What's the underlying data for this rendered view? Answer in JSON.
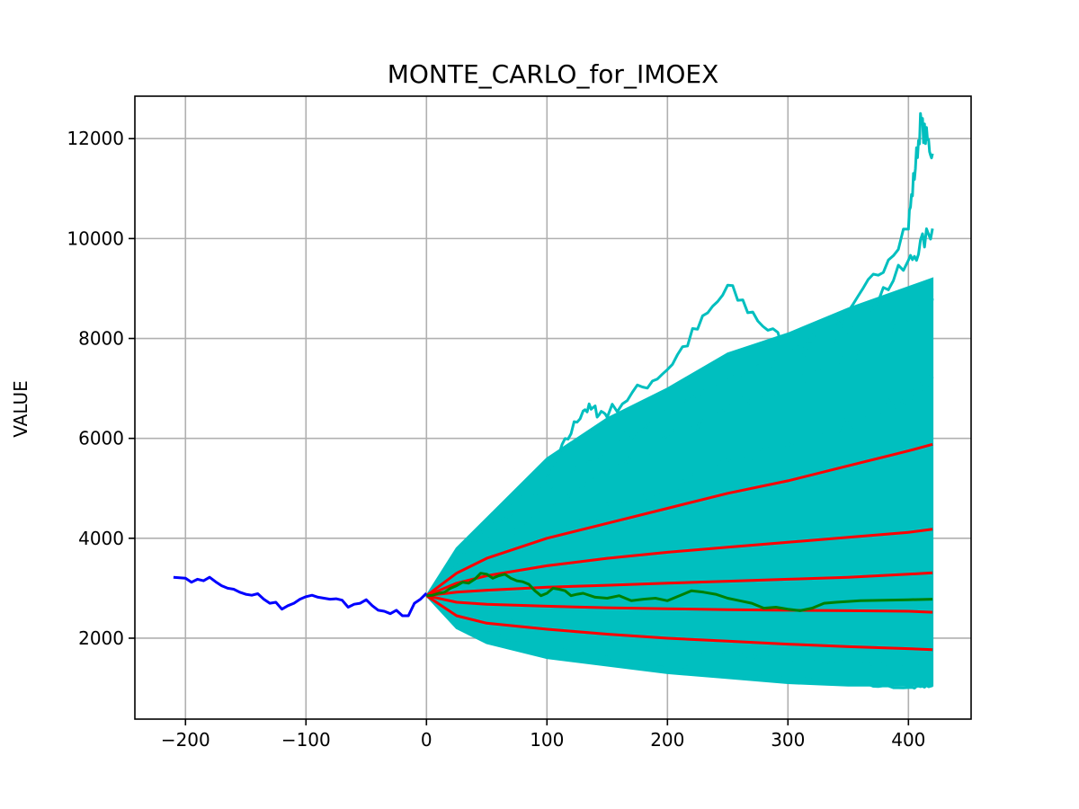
{
  "chart_data": {
    "type": "line",
    "title": "MONTE_CARLO_for_IMOEX",
    "xlabel": "",
    "ylabel": "VALUE",
    "xlim": [
      -242,
      452
    ],
    "ylim": [
      380,
      12850
    ],
    "x_ticks": [
      -200,
      -100,
      0,
      100,
      200,
      300,
      400
    ],
    "x_tick_labels": [
      "−200",
      "−100",
      "0",
      "100",
      "200",
      "300",
      "400"
    ],
    "y_ticks": [
      2000,
      4000,
      6000,
      8000,
      10000,
      12000
    ],
    "y_tick_labels": [
      "2000",
      "4000",
      "6000",
      "8000",
      "10000",
      "12000"
    ],
    "grid": true,
    "colors": {
      "history": "#0000ff",
      "simulations": "#00bfbf",
      "percentiles": "#ff0000",
      "realized": "#008000"
    },
    "simulation_band": {
      "x": [
        0,
        25,
        50,
        100,
        150,
        200,
        250,
        300,
        350,
        420
      ],
      "upper": [
        2850,
        3800,
        4400,
        5600,
        6400,
        7000,
        7700,
        8100,
        8600,
        9200
      ],
      "lower": [
        2850,
        2200,
        1900,
        1600,
        1450,
        1300,
        1200,
        1100,
        1050,
        1050
      ]
    },
    "history_series": {
      "x": [
        -210,
        -200,
        -195,
        -190,
        -185,
        -180,
        -175,
        -170,
        -165,
        -160,
        -155,
        -150,
        -145,
        -140,
        -135,
        -130,
        -125,
        -120,
        -115,
        -110,
        -105,
        -100,
        -95,
        -90,
        -85,
        -80,
        -75,
        -70,
        -65,
        -60,
        -55,
        -50,
        -45,
        -40,
        -35,
        -30,
        -25,
        -20,
        -15,
        -10,
        -5,
        0
      ],
      "y": [
        3220,
        3200,
        3120,
        3180,
        3150,
        3220,
        3130,
        3050,
        3000,
        2980,
        2920,
        2880,
        2860,
        2890,
        2780,
        2700,
        2720,
        2580,
        2650,
        2700,
        2780,
        2830,
        2860,
        2820,
        2800,
        2780,
        2790,
        2760,
        2620,
        2680,
        2700,
        2770,
        2650,
        2560,
        2540,
        2490,
        2560,
        2450,
        2450,
        2700,
        2780,
        2900
      ]
    },
    "realized_series": {
      "x": [
        0,
        5,
        10,
        15,
        20,
        25,
        30,
        35,
        40,
        45,
        50,
        55,
        60,
        65,
        70,
        75,
        80,
        85,
        90,
        95,
        100,
        105,
        110,
        115,
        120,
        125,
        130,
        140,
        150,
        160,
        170,
        180,
        190,
        200,
        210,
        220,
        230,
        240,
        250,
        260,
        270,
        280,
        290,
        300,
        310,
        320,
        330,
        340,
        360,
        380,
        400,
        420
      ],
      "y": [
        2850,
        2860,
        2900,
        2920,
        3000,
        3050,
        3120,
        3100,
        3180,
        3300,
        3280,
        3200,
        3250,
        3280,
        3200,
        3150,
        3130,
        3080,
        2950,
        2850,
        2900,
        3000,
        2980,
        2950,
        2850,
        2880,
        2900,
        2820,
        2800,
        2850,
        2750,
        2780,
        2800,
        2750,
        2850,
        2950,
        2920,
        2880,
        2800,
        2750,
        2700,
        2600,
        2620,
        2580,
        2550,
        2600,
        2700,
        2720,
        2750,
        2760,
        2770,
        2780
      ]
    },
    "percentile_series": [
      {
        "x": [
          0,
          25,
          50,
          100,
          150,
          200,
          250,
          300,
          350,
          400,
          420
        ],
        "y": [
          2850,
          3300,
          3600,
          4000,
          4300,
          4600,
          4900,
          5150,
          5450,
          5750,
          5880
        ]
      },
      {
        "x": [
          0,
          25,
          50,
          100,
          150,
          200,
          250,
          300,
          350,
          400,
          420
        ],
        "y": [
          2850,
          3100,
          3250,
          3450,
          3600,
          3720,
          3820,
          3920,
          4020,
          4120,
          4180
        ]
      },
      {
        "x": [
          0,
          25,
          50,
          100,
          150,
          200,
          250,
          300,
          350,
          400,
          420
        ],
        "y": [
          2850,
          2920,
          2960,
          3020,
          3060,
          3100,
          3140,
          3180,
          3220,
          3280,
          3310
        ]
      },
      {
        "x": [
          0,
          25,
          50,
          100,
          150,
          200,
          250,
          300,
          350,
          400,
          420
        ],
        "y": [
          2850,
          2720,
          2680,
          2640,
          2610,
          2590,
          2570,
          2560,
          2550,
          2540,
          2520
        ]
      },
      {
        "x": [
          0,
          25,
          50,
          100,
          150,
          200,
          250,
          300,
          350,
          400,
          420
        ],
        "y": [
          2850,
          2450,
          2300,
          2180,
          2080,
          2000,
          1940,
          1880,
          1830,
          1790,
          1770
        ]
      }
    ],
    "simulation_paths": [
      {
        "x": [
          0,
          50,
          100,
          130,
          150,
          200,
          250,
          300,
          350,
          400,
          410,
          420
        ],
        "y": [
          2850,
          4200,
          5200,
          6600,
          6500,
          7400,
          9000,
          7800,
          8400,
          10300,
          12300,
          11700
        ]
      },
      {
        "x": [
          0,
          50,
          100,
          150,
          200,
          250,
          300,
          350,
          400,
          420
        ],
        "y": [
          2850,
          4000,
          5000,
          5800,
          6500,
          7200,
          7600,
          8200,
          9500,
          10200
        ]
      },
      {
        "x": [
          0,
          50,
          100,
          150,
          200,
          250,
          300,
          350,
          400,
          420
        ],
        "y": [
          2850,
          3700,
          4600,
          5300,
          6000,
          6600,
          7000,
          7600,
          8400,
          8800
        ]
      },
      {
        "x": [
          0,
          50,
          100,
          150,
          200,
          250,
          300,
          350,
          400,
          420
        ],
        "y": [
          2850,
          3400,
          4000,
          4600,
          5000,
          5500,
          5900,
          6300,
          6800,
          7200
        ]
      },
      {
        "x": [
          0,
          50,
          100,
          150,
          200,
          250,
          300,
          350,
          400,
          420
        ],
        "y": [
          2850,
          2500,
          2200,
          2000,
          1800,
          1700,
          1600,
          1500,
          1450,
          1400
        ]
      },
      {
        "x": [
          0,
          50,
          100,
          150,
          200,
          250,
          300,
          350,
          400,
          420
        ],
        "y": [
          2850,
          2100,
          1800,
          1600,
          1450,
          1300,
          1200,
          1100,
          1000,
          1050
        ]
      }
    ]
  }
}
